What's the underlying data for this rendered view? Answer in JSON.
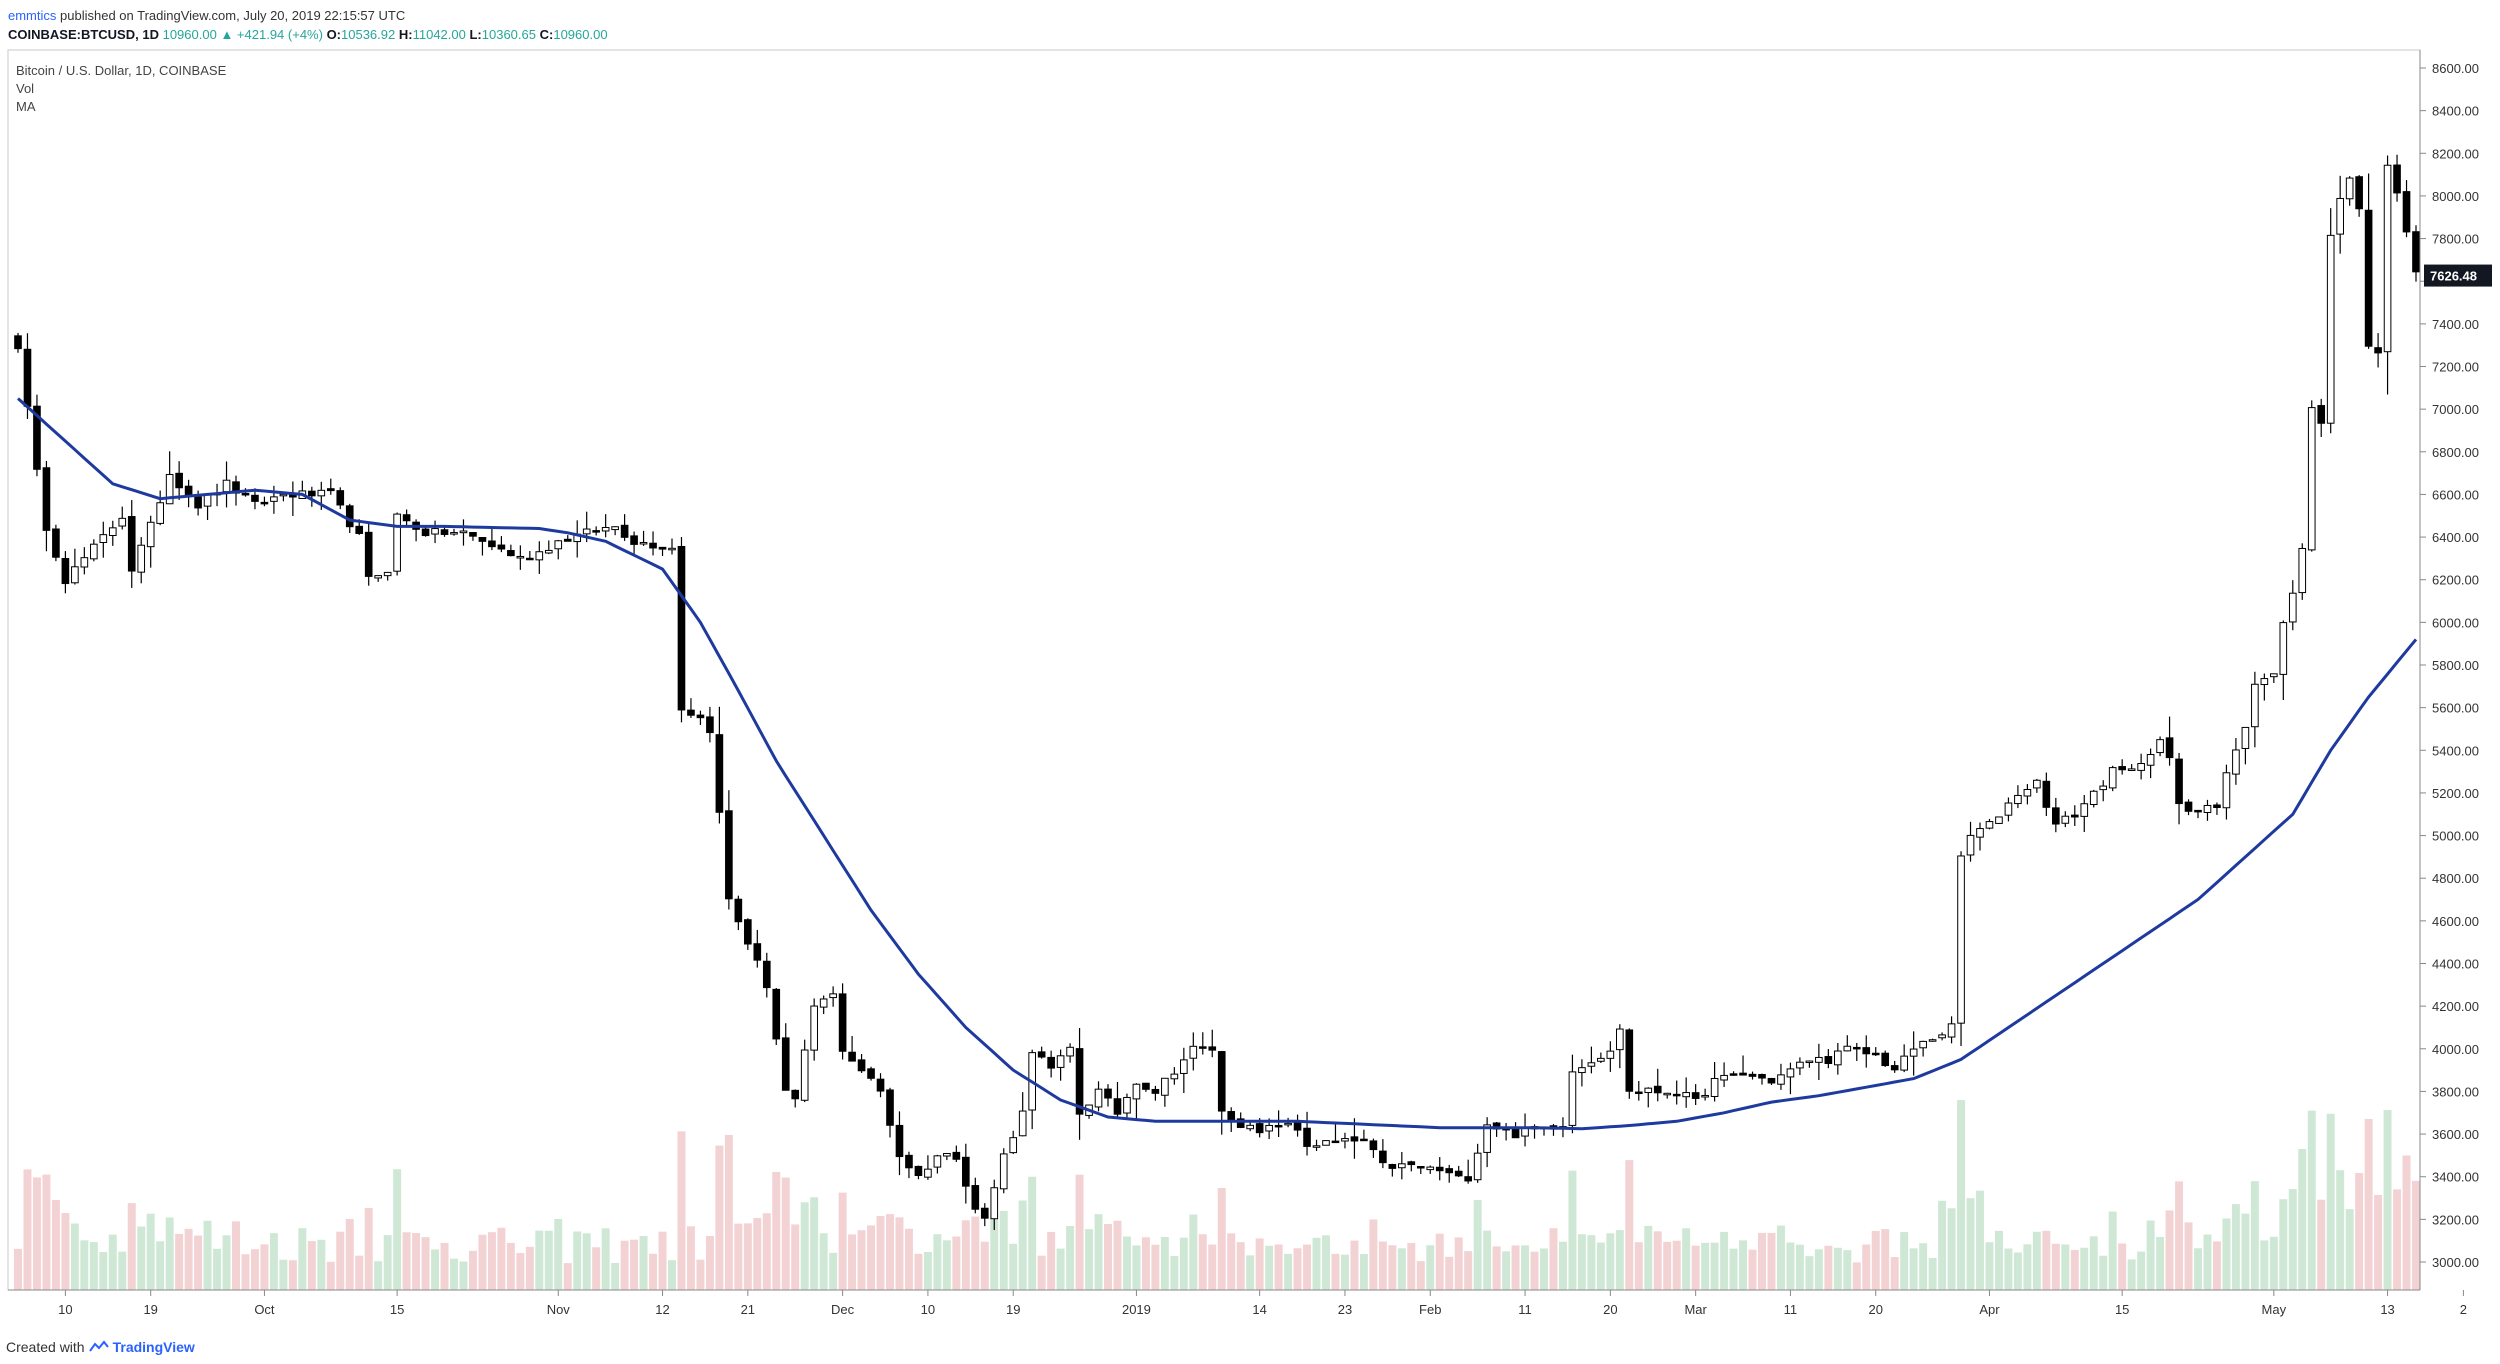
{
  "header": {
    "author": "emmtics",
    "published": "published on TradingView.com, July 20, 2019 22:15:57 UTC",
    "symbol": "COINBASE:BTCUSD, 1D",
    "last": "10960.00",
    "change": "▲ +421.94 (+4%)",
    "o_label": "O:",
    "o_value": "10536.92",
    "h_label": "H:",
    "h_value": "11042.00",
    "l_label": "L:",
    "l_value": "10360.65",
    "c_label": "C:",
    "c_value": "10960.00"
  },
  "legend": {
    "title": "Bitcoin / U.S. Dollar, 1D, COINBASE",
    "vol": "Vol",
    "ma": "MA"
  },
  "footer": {
    "created": "Created with",
    "brand": "TradingView"
  },
  "colors": {
    "ma_line": "#1e3a9e",
    "candle_up_fill": "#ffffff",
    "candle_down_fill": "#000000",
    "candle_stroke": "#000000",
    "vol_up": "#cfe8d6",
    "vol_down": "#f3d2d4",
    "price_label_bg": "#131722"
  },
  "chart_data": {
    "type": "candlestick",
    "y_axis": {
      "min": 2900,
      "max": 8650,
      "ticks": [
        "8600.00",
        "8400.00",
        "8200.00",
        "8000.00",
        "7800.00",
        "7600.00",
        "7400.00",
        "7200.00",
        "7000.00",
        "6800.00",
        "6600.00",
        "6400.00",
        "6200.00",
        "6000.00",
        "5800.00",
        "5600.00",
        "5400.00",
        "5200.00",
        "5000.00",
        "4800.00",
        "4600.00",
        "4400.00",
        "4200.00",
        "4000.00",
        "3800.00",
        "3600.00",
        "3400.00",
        "3200.00",
        "3000.00"
      ],
      "current_price": "7626.48"
    },
    "x_axis": {
      "ticks": [
        {
          "label": "10",
          "i": 5
        },
        {
          "label": "19",
          "i": 14
        },
        {
          "label": "Oct",
          "i": 26
        },
        {
          "label": "15",
          "i": 40
        },
        {
          "label": "Nov",
          "i": 57
        },
        {
          "label": "12",
          "i": 68
        },
        {
          "label": "21",
          "i": 77
        },
        {
          "label": "Dec",
          "i": 87
        },
        {
          "label": "10",
          "i": 96
        },
        {
          "label": "19",
          "i": 105
        },
        {
          "label": "2019",
          "i": 118
        },
        {
          "label": "14",
          "i": 131
        },
        {
          "label": "23",
          "i": 140
        },
        {
          "label": "Feb",
          "i": 149
        },
        {
          "label": "11",
          "i": 159
        },
        {
          "label": "20",
          "i": 168
        },
        {
          "label": "Mar",
          "i": 177
        },
        {
          "label": "11",
          "i": 187
        },
        {
          "label": "20",
          "i": 196
        },
        {
          "label": "Apr",
          "i": 208
        },
        {
          "label": "15",
          "i": 222
        },
        {
          "label": "May",
          "i": 238
        },
        {
          "label": "13",
          "i": 250
        },
        {
          "label": "2",
          "i": 258
        }
      ]
    },
    "close_anchors": [
      [
        0,
        7300
      ],
      [
        2,
        6700
      ],
      [
        3,
        6450
      ],
      [
        5,
        6200
      ],
      [
        8,
        6350
      ],
      [
        11,
        6500
      ],
      [
        12,
        6250
      ],
      [
        14,
        6450
      ],
      [
        16,
        6700
      ],
      [
        19,
        6550
      ],
      [
        22,
        6650
      ],
      [
        25,
        6550
      ],
      [
        28,
        6600
      ],
      [
        31,
        6600
      ],
      [
        33,
        6600
      ],
      [
        36,
        6400
      ],
      [
        37,
        6200
      ],
      [
        39,
        6250
      ],
      [
        40,
        6500
      ],
      [
        43,
        6420
      ],
      [
        47,
        6420
      ],
      [
        53,
        6300
      ],
      [
        55,
        6330
      ],
      [
        57,
        6380
      ],
      [
        60,
        6420
      ],
      [
        63,
        6450
      ],
      [
        65,
        6380
      ],
      [
        69,
        6350
      ],
      [
        70,
        5600
      ],
      [
        72,
        5550
      ],
      [
        73,
        5500
      ],
      [
        75,
        4700
      ],
      [
        77,
        4500
      ],
      [
        79,
        4300
      ],
      [
        81,
        3800
      ],
      [
        82,
        3750
      ],
      [
        84,
        4200
      ],
      [
        86,
        4250
      ],
      [
        87,
        4000
      ],
      [
        89,
        3900
      ],
      [
        91,
        3800
      ],
      [
        93,
        3500
      ],
      [
        95,
        3400
      ],
      [
        97,
        3500
      ],
      [
        99,
        3500
      ],
      [
        101,
        3250
      ],
      [
        102,
        3200
      ],
      [
        104,
        3500
      ],
      [
        106,
        3700
      ],
      [
        107,
        4000
      ],
      [
        109,
        3900
      ],
      [
        111,
        4000
      ],
      [
        112,
        3700
      ],
      [
        114,
        3800
      ],
      [
        116,
        3700
      ],
      [
        118,
        3850
      ],
      [
        120,
        3800
      ],
      [
        122,
        3900
      ],
      [
        124,
        4000
      ],
      [
        126,
        4000
      ],
      [
        127,
        3700
      ],
      [
        129,
        3650
      ],
      [
        131,
        3600
      ],
      [
        133,
        3650
      ],
      [
        135,
        3620
      ],
      [
        136,
        3550
      ],
      [
        139,
        3560
      ],
      [
        142,
        3570
      ],
      [
        144,
        3450
      ],
      [
        147,
        3450
      ],
      [
        150,
        3430
      ],
      [
        152,
        3390
      ],
      [
        153,
        3400
      ],
      [
        155,
        3650
      ],
      [
        158,
        3600
      ],
      [
        160,
        3620
      ],
      [
        163,
        3650
      ],
      [
        164,
        3900
      ],
      [
        166,
        3950
      ],
      [
        168,
        3980
      ],
      [
        169,
        4100
      ],
      [
        170,
        3800
      ],
      [
        172,
        3800
      ],
      [
        175,
        3800
      ],
      [
        177,
        3750
      ],
      [
        179,
        3850
      ],
      [
        182,
        3880
      ],
      [
        185,
        3850
      ],
      [
        187,
        3900
      ],
      [
        189,
        3950
      ],
      [
        191,
        3950
      ],
      [
        193,
        4000
      ],
      [
        196,
        3970
      ],
      [
        198,
        3900
      ],
      [
        200,
        4000
      ],
      [
        202,
        4050
      ],
      [
        204,
        4100
      ],
      [
        205,
        4900
      ],
      [
        206,
        5000
      ],
      [
        208,
        5050
      ],
      [
        211,
        5200
      ],
      [
        213,
        5250
      ],
      [
        215,
        5050
      ],
      [
        217,
        5100
      ],
      [
        219,
        5200
      ],
      [
        221,
        5300
      ],
      [
        223,
        5300
      ],
      [
        225,
        5400
      ],
      [
        226,
        5450
      ],
      [
        227,
        5350
      ],
      [
        228,
        5150
      ],
      [
        229,
        5100
      ],
      [
        231,
        5150
      ],
      [
        232,
        5150
      ],
      [
        233,
        5300
      ],
      [
        235,
        5500
      ],
      [
        236,
        5700
      ],
      [
        237,
        5750
      ],
      [
        238,
        5750
      ],
      [
        239,
        6000
      ],
      [
        240,
        6150
      ],
      [
        241,
        6350
      ],
      [
        242,
        7000
      ],
      [
        243,
        6950
      ],
      [
        244,
        7800
      ],
      [
        245,
        8000
      ],
      [
        246,
        8100
      ],
      [
        247,
        7950
      ],
      [
        248,
        7300
      ],
      [
        249,
        7250
      ],
      [
        250,
        8150
      ],
      [
        251,
        8000
      ],
      [
        252,
        7850
      ],
      [
        253,
        7626
      ]
    ],
    "ma_anchors": [
      [
        0,
        7050
      ],
      [
        5,
        6850
      ],
      [
        10,
        6650
      ],
      [
        15,
        6580
      ],
      [
        25,
        6620
      ],
      [
        30,
        6600
      ],
      [
        35,
        6480
      ],
      [
        40,
        6450
      ],
      [
        45,
        6450
      ],
      [
        55,
        6440
      ],
      [
        58,
        6420
      ],
      [
        62,
        6380
      ],
      [
        68,
        6250
      ],
      [
        72,
        6000
      ],
      [
        76,
        5680
      ],
      [
        80,
        5350
      ],
      [
        85,
        5000
      ],
      [
        90,
        4650
      ],
      [
        95,
        4350
      ],
      [
        100,
        4100
      ],
      [
        105,
        3900
      ],
      [
        110,
        3760
      ],
      [
        115,
        3680
      ],
      [
        120,
        3660
      ],
      [
        125,
        3660
      ],
      [
        130,
        3660
      ],
      [
        135,
        3660
      ],
      [
        140,
        3650
      ],
      [
        145,
        3640
      ],
      [
        150,
        3630
      ],
      [
        155,
        3630
      ],
      [
        160,
        3630
      ],
      [
        165,
        3625
      ],
      [
        170,
        3640
      ],
      [
        175,
        3660
      ],
      [
        180,
        3700
      ],
      [
        185,
        3750
      ],
      [
        190,
        3780
      ],
      [
        195,
        3820
      ],
      [
        200,
        3860
      ],
      [
        205,
        3950
      ],
      [
        210,
        4100
      ],
      [
        215,
        4250
      ],
      [
        220,
        4400
      ],
      [
        225,
        4550
      ],
      [
        230,
        4700
      ],
      [
        235,
        4900
      ],
      [
        240,
        5100
      ],
      [
        244,
        5400
      ],
      [
        248,
        5650
      ],
      [
        253,
        5920
      ]
    ]
  }
}
